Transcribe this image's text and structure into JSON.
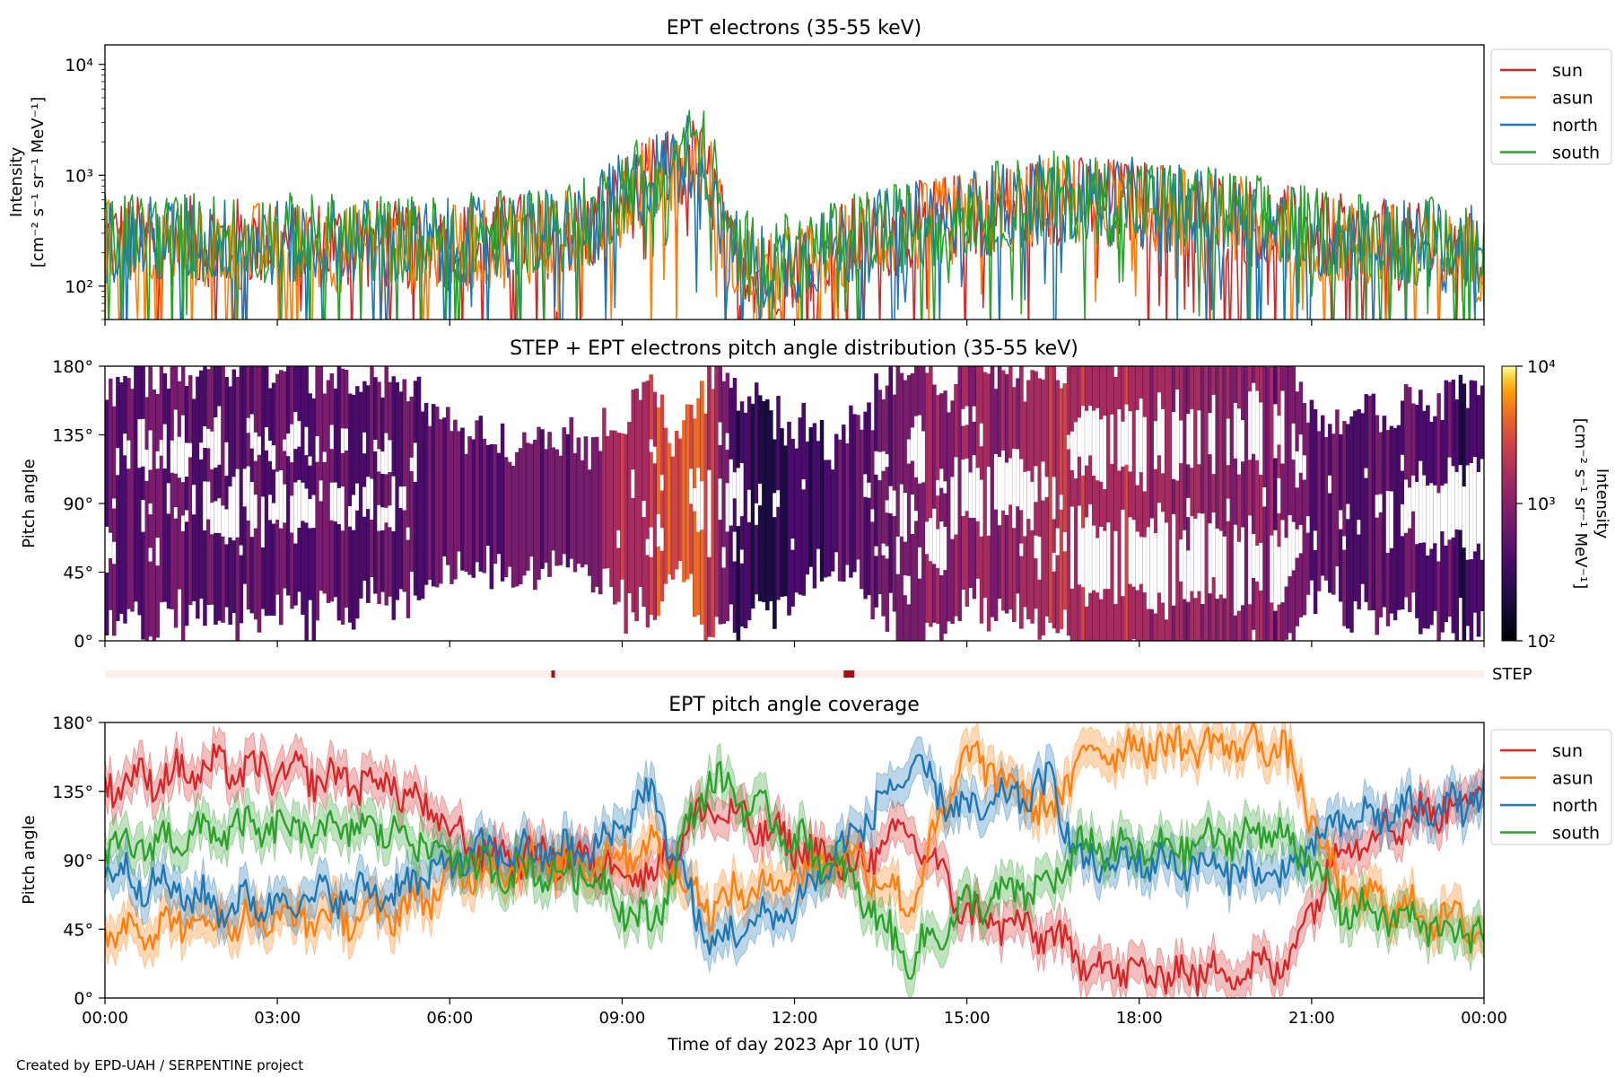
{
  "footer": "Created by EPD-UAH / SERPENTINE project",
  "chart_data": [
    {
      "type": "line",
      "title": "EPT electrons (35-55 keV)",
      "ylabel_line1": "Intensity",
      "ylabel_line2": "[cm⁻² s⁻¹ sr⁻¹ MeV⁻¹]",
      "yscale": "log",
      "ylim": [
        50,
        15000
      ],
      "yticks": [
        {
          "value": 100,
          "label": "10²"
        },
        {
          "value": 1000,
          "label": "10³"
        },
        {
          "value": 10000,
          "label": "10⁴"
        }
      ],
      "legend": "right",
      "series": [
        {
          "name": "sun",
          "color": "#d62728",
          "profile": {
            "x": [
              0,
              6,
              8.5,
              9.8,
              10.3,
              10.8,
              11.5,
              14,
              16.5,
              18,
              21,
              24
            ],
            "y": [
              260,
              230,
              330,
              1000,
              1400,
              200,
              120,
              330,
              600,
              560,
              280,
              180
            ]
          }
        },
        {
          "name": "asun",
          "color": "#ff7f0e",
          "profile": {
            "x": [
              0,
              6,
              8.5,
              9.8,
              10.3,
              10.8,
              11.5,
              14,
              16.5,
              18,
              21,
              24
            ],
            "y": [
              240,
              210,
              310,
              1050,
              1500,
              190,
              110,
              310,
              580,
              540,
              260,
              170
            ]
          }
        },
        {
          "name": "north",
          "color": "#1f77b4",
          "profile": {
            "x": [
              0,
              6,
              8.5,
              9.8,
              10.3,
              10.8,
              11.5,
              14,
              16.5,
              18,
              21,
              24
            ],
            "y": [
              260,
              240,
              340,
              1150,
              1600,
              210,
              140,
              330,
              620,
              560,
              300,
              200
            ]
          }
        },
        {
          "name": "south",
          "color": "#2ca02c",
          "profile": {
            "x": [
              0,
              6,
              8.5,
              9.8,
              10.3,
              10.8,
              11.5,
              14,
              16.5,
              18,
              21,
              24
            ],
            "y": [
              290,
              260,
              380,
              1300,
              2000,
              240,
              150,
              350,
              650,
              580,
              320,
              220
            ]
          }
        }
      ]
    },
    {
      "type": "heatmap",
      "title": "STEP + EPT electrons pitch angle distribution (35-55 keV)",
      "ylabel": "Pitch angle",
      "ylim": [
        0,
        180
      ],
      "yticks": [
        "0°",
        "45°",
        "90°",
        "135°",
        "180°"
      ],
      "colorbar": {
        "label": "Intensity",
        "units": "[cm⁻² s⁻¹ sr⁻¹ MeV⁻¹]",
        "scale": "log",
        "range": [
          100,
          10000
        ],
        "ticks": [
          "10²",
          "10³",
          "10⁴"
        ]
      }
    },
    {
      "type": "bar",
      "label": "STEP",
      "markers_hours": [
        7.8,
        12.95
      ]
    },
    {
      "type": "line",
      "title": "EPT pitch angle coverage",
      "ylabel": "Pitch angle",
      "xlabel": "Time of day 2023 Apr 10 (UT)",
      "xlim": [
        0,
        24
      ],
      "xticks": [
        "00:00",
        "03:00",
        "06:00",
        "09:00",
        "12:00",
        "15:00",
        "18:00",
        "21:00",
        "00:00"
      ],
      "ylim": [
        0,
        180
      ],
      "yticks": [
        "0°",
        "45°",
        "90°",
        "135°",
        "180°"
      ],
      "legend": "right",
      "series": [
        {
          "name": "sun",
          "color": "#d62728",
          "x": [
            0,
            2,
            5,
            6.5,
            8.5,
            9.5,
            10.5,
            12,
            13,
            14,
            15,
            16.5,
            17,
            18,
            20.5,
            21.5,
            24
          ],
          "y": [
            140,
            150,
            140,
            95,
            90,
            80,
            125,
            100,
            85,
            110,
            55,
            40,
            25,
            15,
            20,
            100,
            135
          ]
        },
        {
          "name": "asun",
          "color": "#ff7f0e",
          "x": [
            0,
            2,
            5,
            6.5,
            8.5,
            9.5,
            10.5,
            12,
            13,
            14,
            15,
            16.5,
            17,
            18,
            20.5,
            21.5,
            24
          ],
          "y": [
            45,
            50,
            55,
            85,
            90,
            100,
            60,
            80,
            95,
            60,
            160,
            120,
            160,
            165,
            165,
            70,
            45
          ]
        },
        {
          "name": "north",
          "color": "#1f77b4",
          "x": [
            0,
            2,
            5,
            6.5,
            8.5,
            9.5,
            10.5,
            12,
            13,
            14,
            15,
            16.5,
            17,
            18,
            20.5,
            21.5,
            24
          ],
          "y": [
            85,
            60,
            70,
            95,
            95,
            135,
            35,
            60,
            105,
            150,
            120,
            140,
            85,
            90,
            80,
            115,
            130
          ]
        },
        {
          "name": "south",
          "color": "#2ca02c",
          "x": [
            0,
            2,
            5,
            6.5,
            8.5,
            9.5,
            10.5,
            12,
            13,
            14,
            15,
            16.5,
            17,
            18,
            20.5,
            21.5,
            24
          ],
          "y": [
            95,
            110,
            110,
            85,
            80,
            45,
            145,
            105,
            75,
            25,
            60,
            75,
            100,
            95,
            110,
            60,
            40
          ]
        }
      ]
    }
  ]
}
